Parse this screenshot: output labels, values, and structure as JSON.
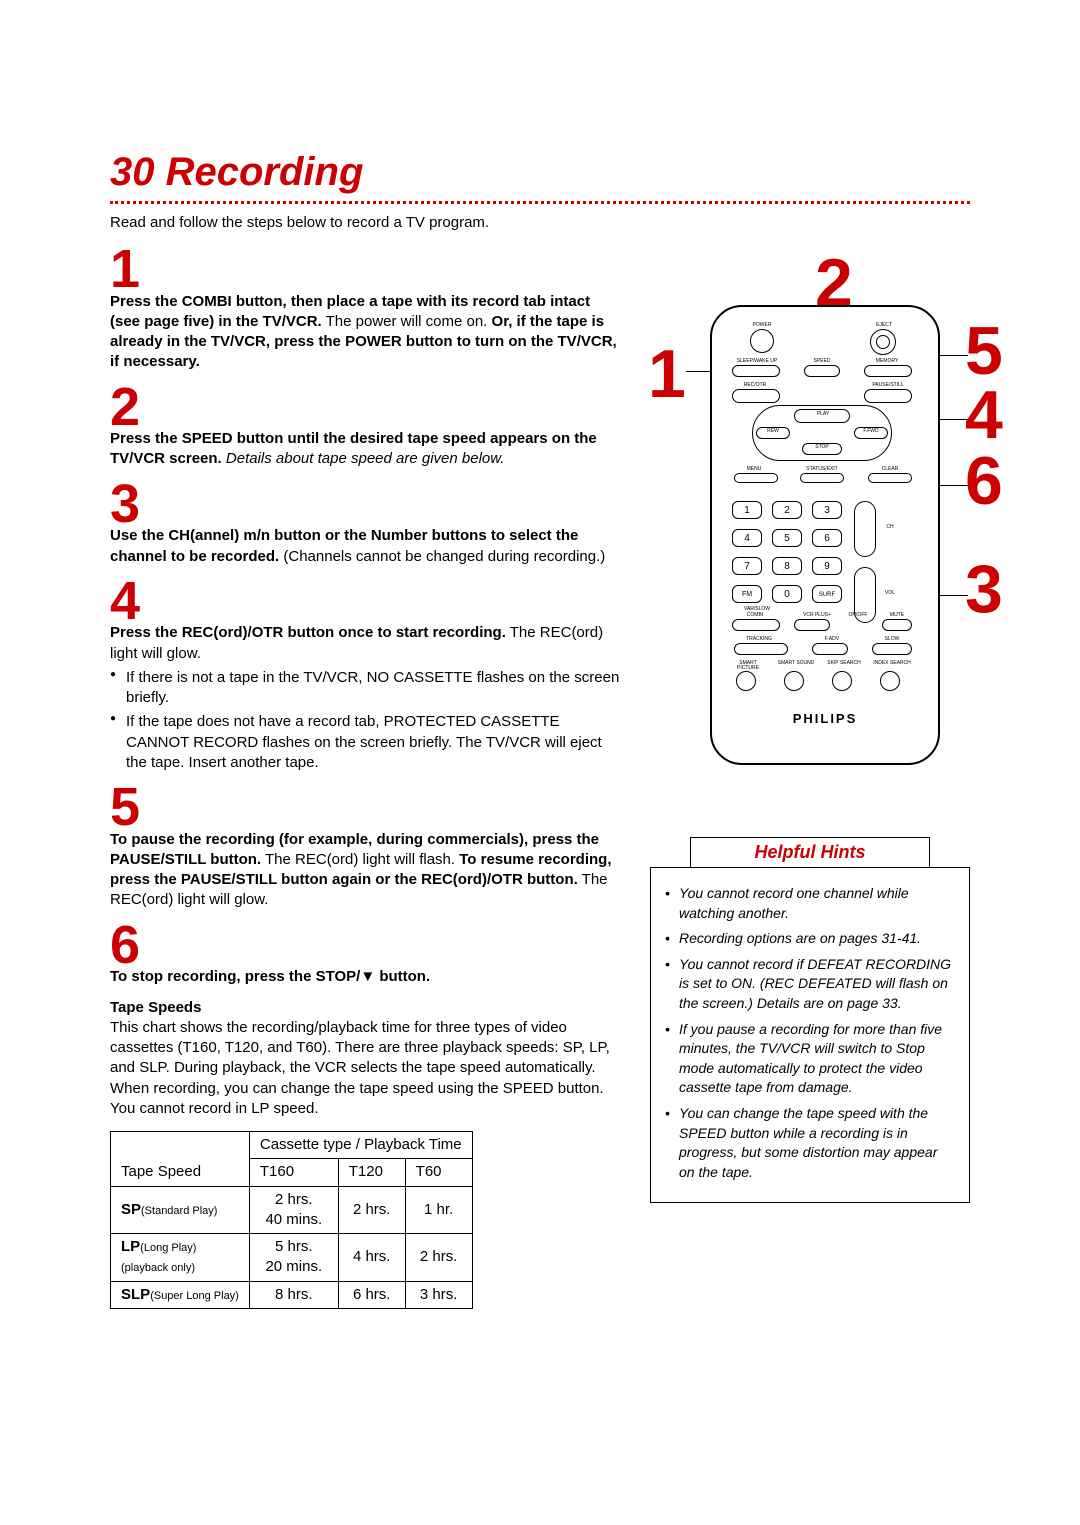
{
  "title": "30  Recording",
  "intro": "Read and follow the steps below to record a TV program.",
  "steps": [
    {
      "n": "1",
      "html": "<b>Press the COMBI button, then place a tape with its record tab intact (see page five) in the TV/VCR.</b> The power will come on. <b>Or, if the tape is already in the TV/VCR, press the POWER button to turn on the TV/VCR, if necessary.</b>"
    },
    {
      "n": "2",
      "html": "<b>Press the SPEED button until the desired tape speed appears on the TV/VCR screen.</b> <i>Details about tape speed are given below.</i>"
    },
    {
      "n": "3",
      "html": "<b>Use the CH(annel) m/n  button or the Number buttons to select the channel to be recorded.</b> (Channels cannot be changed during recording.)"
    },
    {
      "n": "4",
      "html": "<b>Press the REC(ord)/OTR button once to start recording.</b> The REC(ord) light will glow.",
      "bullets": [
        "If there is not a tape in the TV/VCR, NO CASSETTE flashes on the screen briefly.",
        "If the tape does not have a record tab, PROTECTED CASSETTE CANNOT RECORD flashes on the screen briefly. The TV/VCR will eject the tape. Insert another tape."
      ]
    },
    {
      "n": "5",
      "html": "<b>To pause the recording (for example, during commercials), press the PAUSE/STILL button.</b> The REC(ord) light will flash. <b>To resume recording, press the PAUSE/STILL button again or the REC(ord)/OTR button.</b> The REC(ord) light will glow."
    },
    {
      "n": "6",
      "html": "<b>To stop recording, press the STOP/▼ button.</b>"
    }
  ],
  "tape_speeds": {
    "title": "Tape Speeds",
    "desc": "This chart shows the recording/playback time for three types of video cassettes (T160, T120, and T60). There are three playback speeds: SP, LP, and SLP. During playback, the VCR selects the tape speed automatically. When recording, you can change the tape speed using the SPEED button. You cannot record in LP speed.",
    "header_span": "Cassette type / Playback Time",
    "col0": "Tape Speed",
    "cols": [
      "T160",
      "T120",
      "T60"
    ],
    "rows": [
      {
        "label": "SP",
        "sublabel": "(Standard Play)",
        "t160": "2 hrs.\n40 mins.",
        "t120": "2 hrs.",
        "t60": "1 hr."
      },
      {
        "label": "LP",
        "sublabel": "(Long Play)",
        "note": "(playback only)",
        "t160": "5 hrs.\n20 mins.",
        "t120": "4 hrs.",
        "t60": "2 hrs."
      },
      {
        "label": "SLP",
        "sublabel": "(Super Long Play)",
        "t160": "8 hrs.",
        "t120": "6 hrs.",
        "t60": "3 hrs."
      }
    ]
  },
  "hints": {
    "title": "Helpful Hints",
    "items": [
      "You cannot record one channel while watching another.",
      "Recording options are on pages 31-41.",
      "You cannot record if DEFEAT RECORDING is set to ON. (REC DEFEATED will flash on the screen.) Details are on page 33.",
      "If you pause a recording for more than five minutes, the TV/VCR will switch to Stop mode automatically to protect the video cassette tape from damage.",
      "You can change the tape speed with the SPEED button while a recording is in progress, but some distortion may appear on the tape."
    ]
  },
  "remote": {
    "brand": "PHILIPS",
    "labels": {
      "power": "POWER",
      "eject": "EJECT",
      "sleep": "SLEEP/WAKE UP",
      "speed": "SPEED",
      "memory": "MEMORY",
      "rec": "REC/OTR",
      "pause": "PAUSE/STILL",
      "play": "PLAY",
      "rew": "REW",
      "ffwd": "F.FWD",
      "stop": "STOP",
      "menu": "MENU",
      "status": "STATUS/EXIT",
      "clear": "CLEAR",
      "fm": "FM",
      "surf": "SURF",
      "combi": "COMBI",
      "vcrplus": "VCR PLUS+",
      "onoff": "ON/OFF",
      "mute": "MUTE",
      "tracking": "TRACKING",
      "fadv": "F.ADV",
      "slow": "SLOW",
      "picture": "SMART PICTURE",
      "sound": "SMART SOUND",
      "skip": "SKIP SEARCH",
      "index": "INDEX SEARCH",
      "ch": "CH",
      "vol": "VOL"
    },
    "callouts": {
      "c1": "1",
      "c2": "2",
      "c3": "3",
      "c4": "4",
      "c5": "5",
      "c6": "6"
    },
    "colors": {
      "accent": "#cc0000"
    }
  }
}
